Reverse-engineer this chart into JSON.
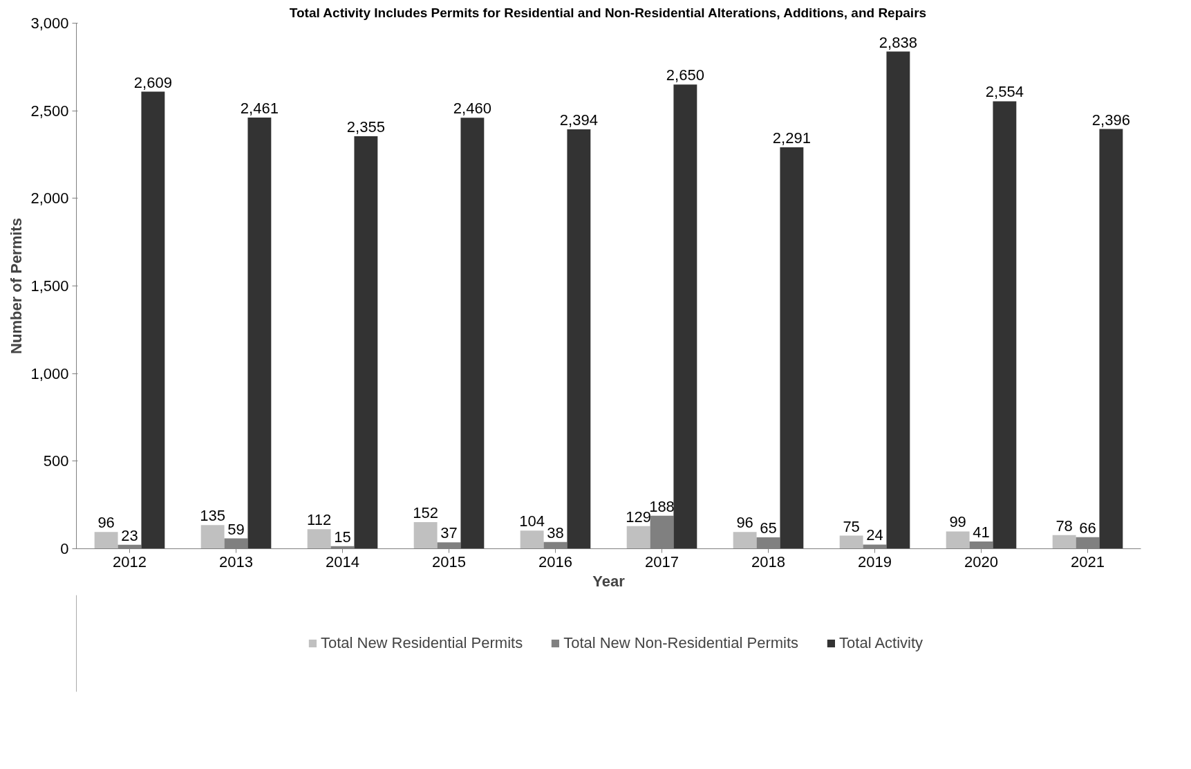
{
  "chart_data": {
    "type": "bar",
    "title": "Total Activity Includes Permits for Residential and Non-Residential Alterations, Additions, and Repairs",
    "xlabel": "Year",
    "ylabel": "Number of Permits",
    "categories": [
      "2012",
      "2013",
      "2014",
      "2015",
      "2016",
      "2017",
      "2018",
      "2019",
      "2020",
      "2021"
    ],
    "series": [
      {
        "name": "Total New Residential Permits",
        "color": "#c0c0c0",
        "values": [
          96,
          135,
          112,
          152,
          104,
          129,
          96,
          75,
          99,
          78
        ],
        "value_labels": [
          "96",
          "135",
          "112",
          "152",
          "104",
          "129",
          "96",
          "75",
          "99",
          "78"
        ]
      },
      {
        "name": "Total New Non-Residential Permits",
        "color": "#808080",
        "values": [
          23,
          59,
          15,
          37,
          38,
          188,
          65,
          24,
          41,
          66
        ],
        "value_labels": [
          "23",
          "59",
          "15",
          "37",
          "38",
          "188",
          "65",
          "24",
          "41",
          "66"
        ]
      },
      {
        "name": "Total Activity",
        "color": "#333333",
        "values": [
          2609,
          2461,
          2355,
          2460,
          2394,
          2650,
          2291,
          2838,
          2554,
          2396
        ],
        "value_labels": [
          "2,609",
          "2,461",
          "2,355",
          "2,460",
          "2,394",
          "2,650",
          "2,291",
          "2,838",
          "2,554",
          "2,396"
        ]
      }
    ],
    "ylim": [
      0,
      3000
    ],
    "yticks": [
      {
        "value": 0,
        "label": "0"
      },
      {
        "value": 500,
        "label": "500"
      },
      {
        "value": 1000,
        "label": "1,000"
      },
      {
        "value": 1500,
        "label": "1,500"
      },
      {
        "value": 2000,
        "label": "2,000"
      },
      {
        "value": 2500,
        "label": "2,500"
      },
      {
        "value": 3000,
        "label": "3,000"
      }
    ],
    "grid": false,
    "legend": "bottom"
  }
}
